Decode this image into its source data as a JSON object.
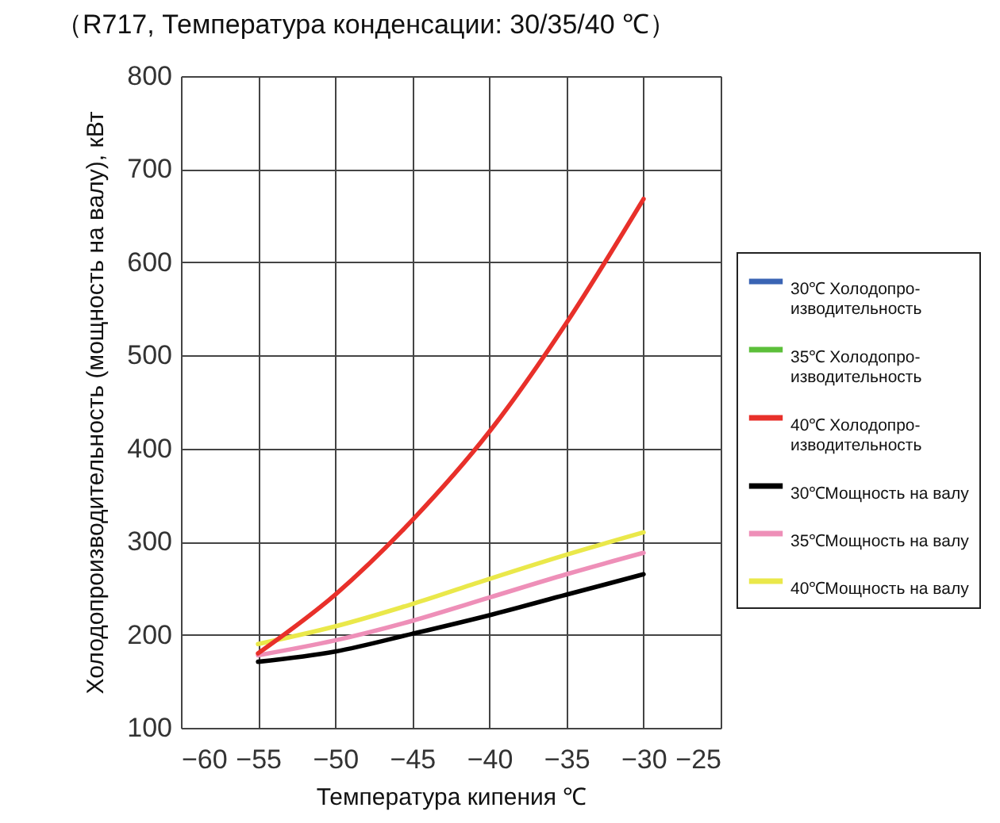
{
  "chart_data": {
    "type": "line",
    "title": "（R717, Температура конденсации: 30/35/40 ℃）",
    "xlabel": "Температура кипения ℃",
    "ylabel": "Холодопроизводительность (мощность на валу), кВт",
    "x": [
      -55,
      -50,
      -45,
      -40,
      -35,
      -30
    ],
    "series": [
      {
        "name": "30℃ Холодопро-изводительность",
        "color": "#3a64b4",
        "values": [
          null,
          null,
          null,
          null,
          null,
          null
        ]
      },
      {
        "name": "35℃ Холодопро-изводительность",
        "color": "#5cbf3a",
        "values": [
          null,
          null,
          null,
          null,
          null,
          null
        ]
      },
      {
        "name": "40℃ Холодопро-изводительность",
        "color": "#e8302a",
        "values": [
          180,
          243,
          323,
          418,
          535,
          668
        ]
      },
      {
        "name": "30℃Мощность на валу",
        "color": "#000000",
        "values": [
          171,
          182,
          201,
          221,
          243,
          265
        ]
      },
      {
        "name": "35℃Мощность на валу",
        "color": "#ee8fb8",
        "values": [
          178,
          194,
          215,
          240,
          265,
          288
        ]
      },
      {
        "name": "40℃Мощность на валу",
        "color": "#eae84a",
        "values": [
          190,
          209,
          233,
          260,
          286,
          310
        ]
      }
    ],
    "xlim": [
      -60,
      -25
    ],
    "xticks": [
      -60,
      -55,
      -50,
      -45,
      -40,
      -35,
      -30,
      -25
    ],
    "ylim": [
      100,
      800
    ],
    "yticks": [
      100,
      200,
      300,
      400,
      500,
      600,
      700,
      800
    ],
    "grid": true,
    "legend": "right",
    "line_style": "solid"
  }
}
